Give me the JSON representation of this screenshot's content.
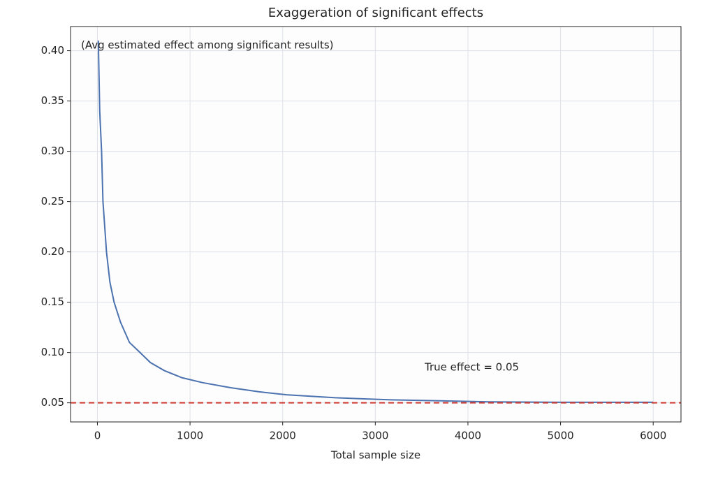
{
  "chart_data": {
    "type": "line",
    "title": "Exaggeration of significant effects",
    "xlabel": "Total sample size",
    "annotation": "(Avg estimated effect among significant results)",
    "reference_label": "True effect = 0.05",
    "reference_value": 0.05,
    "reference_color": "#d0392f",
    "x": [
      10,
      25,
      45,
      60,
      83,
      98,
      135,
      180,
      250,
      346,
      460,
      572,
      723,
      911,
      1137,
      1438,
      1740,
      2040,
      2568,
      3170,
      3697,
      4224,
      4977,
      6000
    ],
    "series": [
      {
        "name": "Avg estimated effect",
        "color": "#4c72b0",
        "values": [
          0.41,
          0.34,
          0.3,
          0.25,
          0.22,
          0.2,
          0.17,
          0.15,
          0.13,
          0.11,
          0.1,
          0.09,
          0.082,
          0.075,
          0.07,
          0.065,
          0.061,
          0.058,
          0.055,
          0.053,
          0.052,
          0.051,
          0.0505,
          0.0505
        ]
      }
    ],
    "xlim": [
      -290,
      6300
    ],
    "ylim": [
      0.031,
      0.424
    ],
    "xticks": [
      0,
      1000,
      2000,
      3000,
      4000,
      5000,
      6000
    ],
    "yticks": [
      0.05,
      {
        "value": 0.1,
        "label": "0.10"
      },
      0.15,
      {
        "value": 0.2,
        "label": "0.20"
      },
      0.25,
      {
        "value": 0.3,
        "label": "0.30"
      },
      0.35,
      {
        "value": 0.4,
        "label": "0.40"
      }
    ],
    "grid": true
  }
}
